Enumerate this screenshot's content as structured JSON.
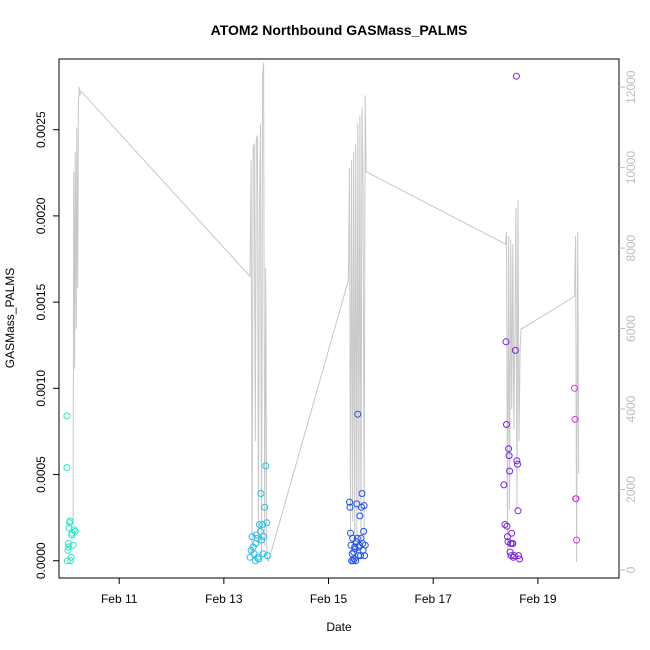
{
  "chart_data": {
    "type": "scatter",
    "title": "ATOM2 Northbound GASMass_PALMS",
    "xlabel": "Date",
    "ylabel": "GASMass_PALMS",
    "x_unit": "day of February",
    "xlim": [
      9.85,
      20.55
    ],
    "ylim": [
      -0.0001,
      0.00291
    ],
    "y2lim": [
      -200,
      12700
    ],
    "grid": false,
    "legend": "none",
    "x_ticks": [
      {
        "value": 11,
        "label": "Feb 11"
      },
      {
        "value": 13,
        "label": "Feb 13"
      },
      {
        "value": 15,
        "label": "Feb 15"
      },
      {
        "value": 17,
        "label": "Feb 17"
      },
      {
        "value": 19,
        "label": "Feb 19"
      }
    ],
    "y_ticks": [
      {
        "value": 0.0,
        "label": "0.0000"
      },
      {
        "value": 0.0005,
        "label": "0.0005"
      },
      {
        "value": 0.001,
        "label": "0.0010"
      },
      {
        "value": 0.0015,
        "label": "0.0015"
      },
      {
        "value": 0.002,
        "label": "0.0020"
      },
      {
        "value": 0.0025,
        "label": "0.0025"
      }
    ],
    "y2_ticks": [
      {
        "value": 0,
        "label": "0"
      },
      {
        "value": 2000,
        "label": "2000"
      },
      {
        "value": 4000,
        "label": "4000"
      },
      {
        "value": 6000,
        "label": "6000"
      },
      {
        "value": 8000,
        "label": "8000"
      },
      {
        "value": 10000,
        "label": "10000"
      },
      {
        "value": 12000,
        "label": "12000"
      }
    ],
    "colors": {
      "line": "#c8c8c8",
      "axis": "#000000",
      "right_axis": "#bdbdbd",
      "flight1": "#22ecc4",
      "flight2": "#22c0ec",
      "flight3": "#1f4ff5",
      "flight4": "#7a22e8",
      "flight5": "#dc33e0"
    },
    "line_series": {
      "axis": "right",
      "x": [
        10.12,
        10.13,
        10.15,
        10.16,
        10.18,
        10.19,
        10.21,
        10.22,
        10.24,
        10.25,
        10.27,
        13.5,
        13.52,
        13.54,
        13.56,
        13.58,
        13.6,
        13.62,
        13.64,
        13.66,
        13.68,
        13.7,
        13.72,
        13.74,
        13.76,
        13.78,
        13.8,
        13.82,
        13.85,
        15.38,
        15.4,
        15.42,
        15.44,
        15.46,
        15.48,
        15.5,
        15.52,
        15.54,
        15.56,
        15.58,
        15.6,
        15.62,
        15.64,
        15.66,
        15.68,
        15.7,
        15.72,
        18.38,
        18.4,
        18.42,
        18.44,
        18.46,
        18.48,
        18.5,
        18.52,
        18.54,
        18.56,
        18.58,
        18.6,
        18.62,
        18.64,
        18.66,
        18.68,
        18.7,
        19.7,
        19.72,
        19.74,
        19.76,
        19.78
      ],
      "y": [
        1100,
        9900,
        5000,
        10400,
        6000,
        11000,
        7000,
        11600,
        12000,
        11800,
        11900,
        7300,
        10200,
        300,
        10500,
        10600,
        3200,
        10700,
        10800,
        600,
        9000,
        11100,
        200,
        12300,
        12600,
        600,
        7500,
        400,
        200,
        7200,
        10000,
        800,
        10200,
        1200,
        10400,
        500,
        10600,
        800,
        11100,
        1500,
        11300,
        700,
        11500,
        9500,
        800,
        11800,
        9900,
        8100,
        8400,
        300,
        8300,
        1500,
        8200,
        4000,
        8100,
        3500,
        5800,
        9000,
        1500,
        9200,
        3200,
        5500,
        6000,
        6000,
        6800,
        8300,
        200,
        8400,
        2400
      ]
    },
    "series": [
      {
        "color": "#22ecc4",
        "x": [
          10.0,
          10.0,
          10.01,
          10.02,
          10.03,
          10.03,
          10.04,
          10.05,
          10.06,
          10.07,
          10.08,
          10.09,
          10.1,
          10.12,
          10.14,
          10.16
        ],
        "y": [
          0.00084,
          0.00054,
          0.0,
          6e-05,
          8e-05,
          0.0001,
          0.00019,
          0.00022,
          0.00023,
          0.0,
          2e-05,
          0.00015,
          0.00016,
          9e-05,
          0.00018,
          0.00017
        ]
      },
      {
        "color": "#22c0ec",
        "x": [
          13.5,
          13.52,
          13.54,
          13.56,
          13.58,
          13.6,
          13.61,
          13.62,
          13.64,
          13.65,
          13.66,
          13.68,
          13.7,
          13.71,
          13.72,
          13.74,
          13.75,
          13.76,
          13.78,
          13.8,
          13.82,
          13.83
        ],
        "y": [
          2e-05,
          6e-05,
          0.00014,
          8e-05,
          4e-05,
          0.0,
          0.0001,
          0.00015,
          0.00013,
          2e-05,
          1e-05,
          0.00021,
          0.00017,
          0.00039,
          0.00012,
          0.00021,
          4e-05,
          0.00014,
          0.00031,
          0.00055,
          0.00022,
          3e-05
        ]
      },
      {
        "color": "#1f4ff5",
        "x": [
          15.4,
          15.41,
          15.42,
          15.43,
          15.44,
          15.45,
          15.46,
          15.47,
          15.48,
          15.49,
          15.5,
          15.51,
          15.52,
          15.53,
          15.54,
          15.55,
          15.56,
          15.57,
          15.58,
          15.59,
          15.6,
          15.61,
          15.62,
          15.63,
          15.64,
          15.65,
          15.66,
          15.67,
          15.68,
          15.69,
          15.7
        ],
        "y": [
          0.00034,
          0.00031,
          0.00016,
          9e-05,
          0.0,
          4e-05,
          0.00013,
          0.0,
          5e-05,
          1e-05,
          8e-05,
          7e-05,
          0.0,
          0.00011,
          0.00033,
          0.00013,
          0.00085,
          3e-05,
          8e-05,
          9e-05,
          0.00026,
          3e-05,
          0.00013,
          0.00031,
          0.00039,
          0.0001,
          6e-05,
          0.00017,
          0.00032,
          3e-05,
          9e-05
        ]
      },
      {
        "color": "#7a22e8",
        "x": [
          18.35,
          18.37,
          18.39,
          18.4,
          18.41,
          18.42,
          18.43,
          18.44,
          18.45,
          18.46,
          18.47,
          18.48,
          18.49,
          18.5,
          18.51,
          18.52,
          18.53,
          18.55,
          18.57,
          18.59,
          18.6,
          18.61,
          18.62,
          18.63,
          18.65
        ],
        "y": [
          0.00044,
          0.00021,
          0.00127,
          0.00079,
          0.0002,
          0.00014,
          0.00011,
          0.00065,
          0.00061,
          0.00052,
          5e-05,
          0.0001,
          3e-05,
          0.00016,
          0.0001,
          0.0001,
          2e-05,
          3e-05,
          0.00122,
          0.00281,
          0.00058,
          0.00056,
          0.00029,
          3e-05,
          1e-05
        ]
      },
      {
        "color": "#dc33e0",
        "x": [
          19.7,
          19.71,
          19.72,
          19.73,
          19.74
        ],
        "y": [
          0.001,
          0.00082,
          0.00036,
          0.00036,
          0.00012
        ]
      }
    ]
  }
}
